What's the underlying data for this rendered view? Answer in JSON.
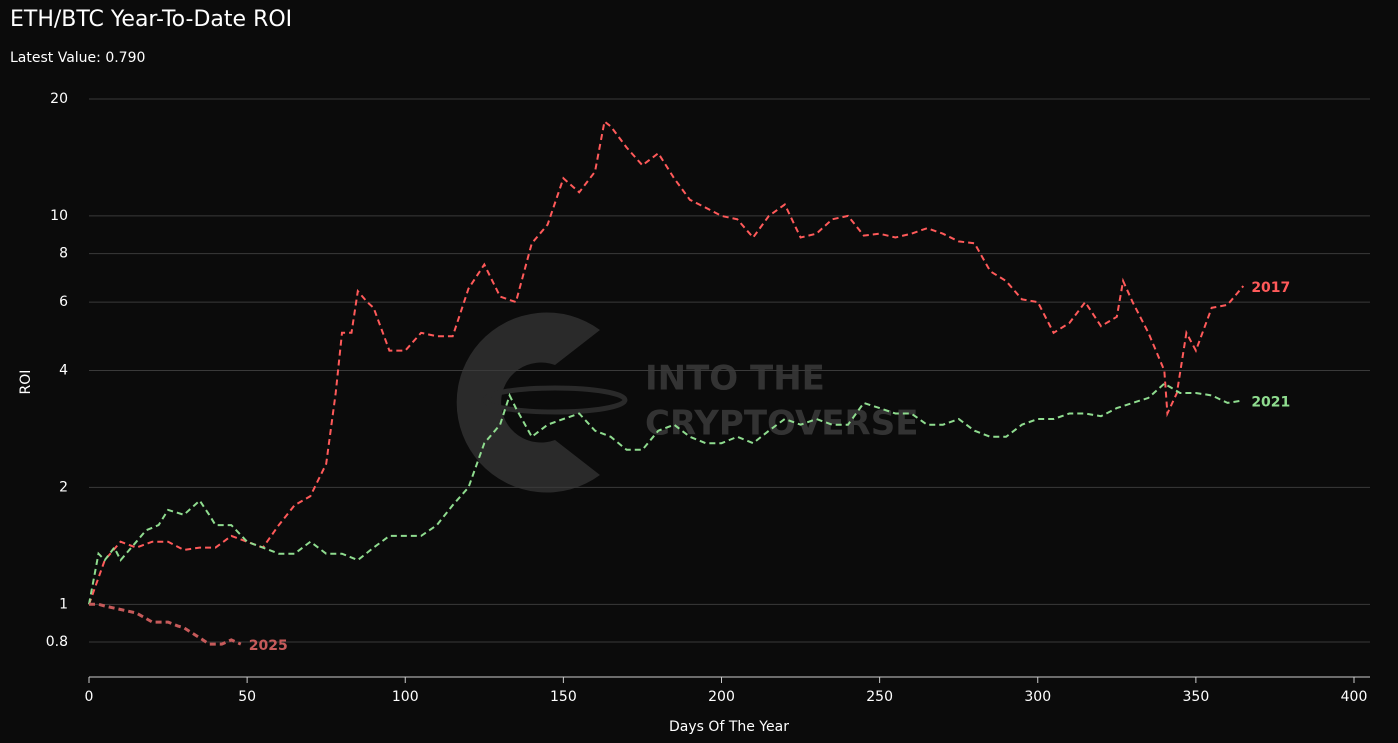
{
  "chart_data": {
    "type": "line",
    "title": "ETH/BTC Year-To-Date ROI",
    "subtitle": "Latest Value: 0.790",
    "watermark": [
      "INTO THE",
      "CRYPTOVERSE"
    ],
    "x_label": "Days Of The Year",
    "y_label": "ROI",
    "xlim": [
      0,
      400
    ],
    "xticks": [
      0,
      50,
      100,
      150,
      200,
      250,
      300,
      350,
      400
    ],
    "ylim": [
      0.65,
      20
    ],
    "yticks": [
      0.8,
      1,
      2,
      4,
      6,
      8,
      10,
      20
    ],
    "y_scale": "log",
    "grid": true,
    "series": [
      {
        "name": "2017",
        "color": "#ff5a5a",
        "x": [
          0,
          5,
          10,
          15,
          20,
          25,
          30,
          35,
          40,
          45,
          50,
          55,
          60,
          65,
          70,
          75,
          78,
          80,
          83,
          85,
          88,
          90,
          95,
          100,
          105,
          110,
          115,
          120,
          125,
          130,
          135,
          140,
          145,
          150,
          155,
          160,
          163,
          165,
          170,
          175,
          180,
          185,
          190,
          195,
          200,
          205,
          210,
          215,
          220,
          225,
          230,
          235,
          240,
          245,
          250,
          255,
          260,
          265,
          270,
          275,
          280,
          285,
          290,
          295,
          300,
          305,
          310,
          315,
          320,
          325,
          327,
          330,
          335,
          340,
          341,
          344,
          347,
          350,
          355,
          360,
          365
        ],
        "values": [
          1.0,
          1.3,
          1.45,
          1.4,
          1.45,
          1.45,
          1.38,
          1.4,
          1.4,
          1.5,
          1.45,
          1.4,
          1.6,
          1.8,
          1.9,
          2.3,
          3.5,
          5.0,
          5.0,
          6.4,
          6.0,
          5.8,
          4.5,
          4.5,
          5.0,
          4.9,
          4.9,
          6.5,
          7.5,
          6.2,
          6.0,
          8.5,
          9.5,
          12.5,
          11.5,
          13,
          17.5,
          17,
          15,
          13.5,
          14.5,
          12.5,
          11.0,
          10.5,
          10.0,
          9.8,
          8.8,
          10,
          10.7,
          8.8,
          9.0,
          9.8,
          10.0,
          8.9,
          9.0,
          8.8,
          9.0,
          9.3,
          9.0,
          8.6,
          8.5,
          7.2,
          6.8,
          6.1,
          6.0,
          5.0,
          5.3,
          6.0,
          5.2,
          5.5,
          6.8,
          6.0,
          5.0,
          4.0,
          3.1,
          3.5,
          5.0,
          4.5,
          5.8,
          5.9,
          6.6
        ]
      },
      {
        "name": "2021",
        "color": "#8fdc8f",
        "x": [
          0,
          3,
          5,
          8,
          10,
          15,
          18,
          22,
          25,
          30,
          35,
          38,
          40,
          45,
          50,
          55,
          60,
          65,
          70,
          75,
          80,
          85,
          90,
          95,
          100,
          105,
          110,
          115,
          120,
          125,
          130,
          133,
          135,
          140,
          145,
          150,
          155,
          160,
          165,
          170,
          175,
          180,
          185,
          190,
          195,
          200,
          205,
          210,
          215,
          220,
          225,
          230,
          235,
          240,
          245,
          250,
          255,
          260,
          265,
          270,
          275,
          280,
          285,
          290,
          295,
          300,
          305,
          310,
          315,
          320,
          325,
          330,
          335,
          340,
          345,
          350,
          355,
          360,
          365
        ],
        "values": [
          1.0,
          1.35,
          1.3,
          1.4,
          1.3,
          1.45,
          1.55,
          1.6,
          1.75,
          1.7,
          1.85,
          1.7,
          1.6,
          1.6,
          1.45,
          1.4,
          1.35,
          1.35,
          1.45,
          1.35,
          1.35,
          1.3,
          1.4,
          1.5,
          1.5,
          1.5,
          1.6,
          1.8,
          2.0,
          2.6,
          2.9,
          3.45,
          3.2,
          2.7,
          2.9,
          3.0,
          3.1,
          2.8,
          2.7,
          2.5,
          2.5,
          2.8,
          2.9,
          2.7,
          2.6,
          2.6,
          2.7,
          2.6,
          2.8,
          3.0,
          2.9,
          3.0,
          2.9,
          2.9,
          3.3,
          3.2,
          3.1,
          3.1,
          2.9,
          2.9,
          3.0,
          2.8,
          2.7,
          2.7,
          2.9,
          3.0,
          3.0,
          3.1,
          3.1,
          3.05,
          3.2,
          3.3,
          3.4,
          3.7,
          3.5,
          3.5,
          3.45,
          3.3,
          3.35
        ]
      },
      {
        "name": "2025",
        "color": "#c65a5a",
        "x": [
          0,
          3,
          5,
          10,
          15,
          18,
          20,
          25,
          28,
          30,
          35,
          38,
          42,
          45,
          48
        ],
        "values": [
          1.0,
          1.0,
          0.99,
          0.97,
          0.95,
          0.92,
          0.9,
          0.9,
          0.88,
          0.87,
          0.82,
          0.79,
          0.79,
          0.81,
          0.79
        ]
      }
    ]
  }
}
